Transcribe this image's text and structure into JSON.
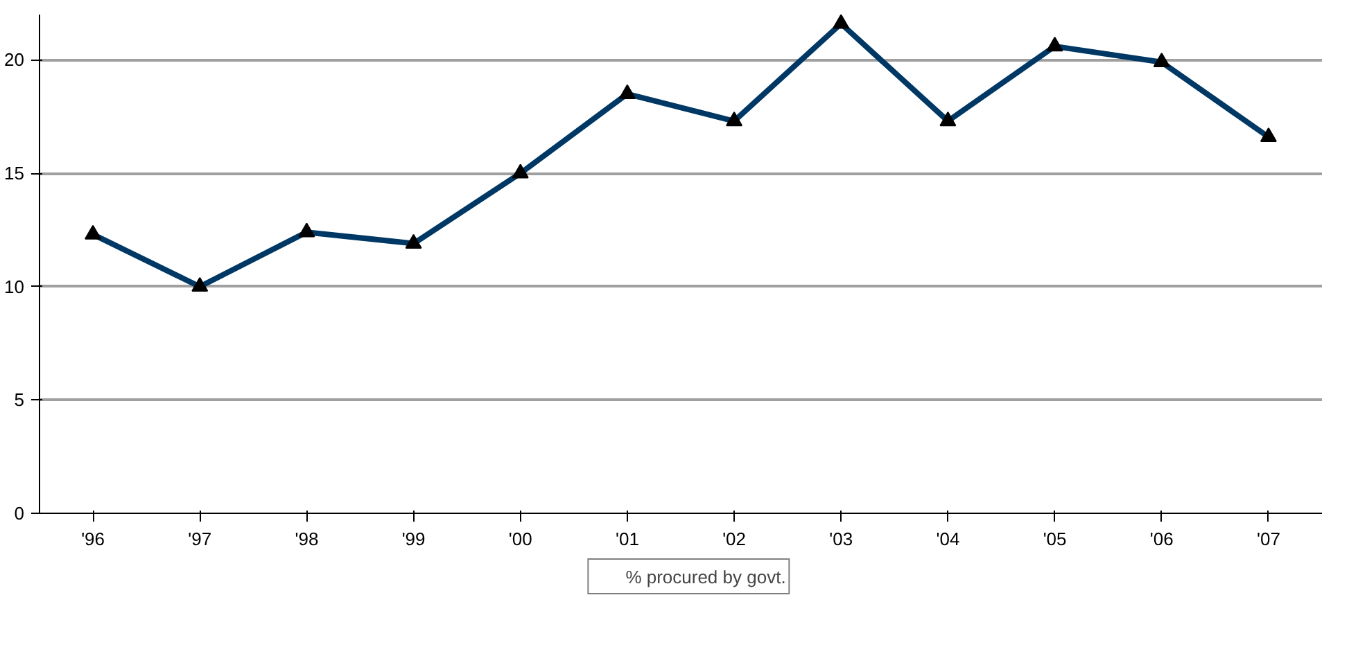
{
  "chart_data": {
    "type": "line",
    "categories": [
      "'96",
      "'97",
      "'98",
      "'99",
      "'00",
      "'01",
      "'02",
      "'03",
      "'04",
      "'05",
      "'06",
      "'07"
    ],
    "series": [
      {
        "name": "% procured by govt.",
        "color": "#003865",
        "values": [
          12.3,
          10.0,
          12.4,
          11.9,
          15.0,
          18.5,
          17.3,
          21.6,
          17.3,
          20.6,
          19.9,
          16.6
        ]
      }
    ],
    "ylim": [
      0,
      22
    ],
    "yticks": [
      0,
      5,
      10,
      15,
      20
    ],
    "grid": "y",
    "legend": "bottom",
    "marker": "triangle",
    "line_style": "solid"
  }
}
